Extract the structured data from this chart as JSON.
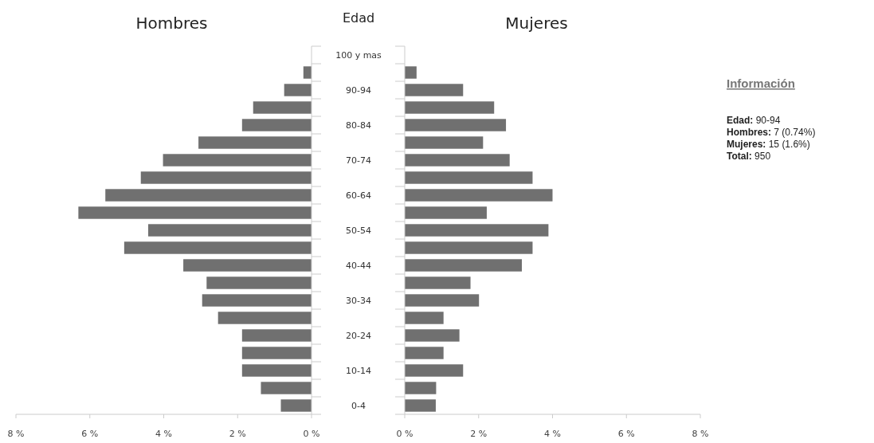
{
  "chart_data": [
    {
      "type": "bar",
      "orientation": "horizontal",
      "title": "Hombres",
      "ylabel": "Edad",
      "categories": [
        "100 y mas",
        null,
        "90-94",
        null,
        "80-84",
        null,
        "70-74",
        null,
        "60-64",
        null,
        "50-54",
        null,
        "40-44",
        null,
        "30-34",
        null,
        "20-24",
        null,
        "10-14",
        null,
        "0-4"
      ],
      "values": [
        0,
        0.22,
        0.74,
        1.58,
        1.88,
        3.06,
        4.02,
        4.62,
        5.58,
        6.31,
        4.42,
        5.07,
        3.47,
        2.84,
        2.96,
        2.53,
        1.88,
        1.88,
        1.88,
        1.37,
        0.83
      ],
      "color": "#707070",
      "xlim": [
        8,
        0
      ],
      "xticks": [
        {
          "value": 8,
          "label": "8 %"
        },
        {
          "value": 6,
          "label": "6 %"
        },
        {
          "value": 4,
          "label": "4 %"
        },
        {
          "value": 2,
          "label": "2 %"
        },
        {
          "value": 0,
          "label": "0 %"
        }
      ]
    },
    {
      "type": "bar",
      "orientation": "horizontal",
      "title": "Mujeres",
      "tick_labels": "x",
      "categories": [
        "100 y mas",
        null,
        "90-94",
        null,
        "80-84",
        null,
        "70-74",
        null,
        "60-64",
        null,
        "50-54",
        null,
        "40-44",
        null,
        "30-34",
        null,
        "20-24",
        null,
        "10-14",
        null,
        "0-4"
      ],
      "values": [
        0,
        0.32,
        1.58,
        2.42,
        2.74,
        2.12,
        2.84,
        3.46,
        4.0,
        2.22,
        3.89,
        3.46,
        3.17,
        1.78,
        2.01,
        1.05,
        1.48,
        1.05,
        1.58,
        0.85,
        0.84
      ],
      "color": "#707070",
      "xlim": [
        0,
        8
      ],
      "xticks": [
        {
          "value": 0,
          "label": "0 %"
        },
        {
          "value": 2,
          "label": "2 %"
        },
        {
          "value": 4,
          "label": "4 %"
        },
        {
          "value": 6,
          "label": "6 %"
        },
        {
          "value": 8,
          "label": "8 %"
        }
      ]
    },
    {
      "type": "other",
      "title": "Información",
      "annotations": [
        "Edad: 90-94",
        "Hombres: 7 (0.74%)",
        "Mujeres: 15 (1.6%)",
        "Total: 950"
      ]
    }
  ]
}
